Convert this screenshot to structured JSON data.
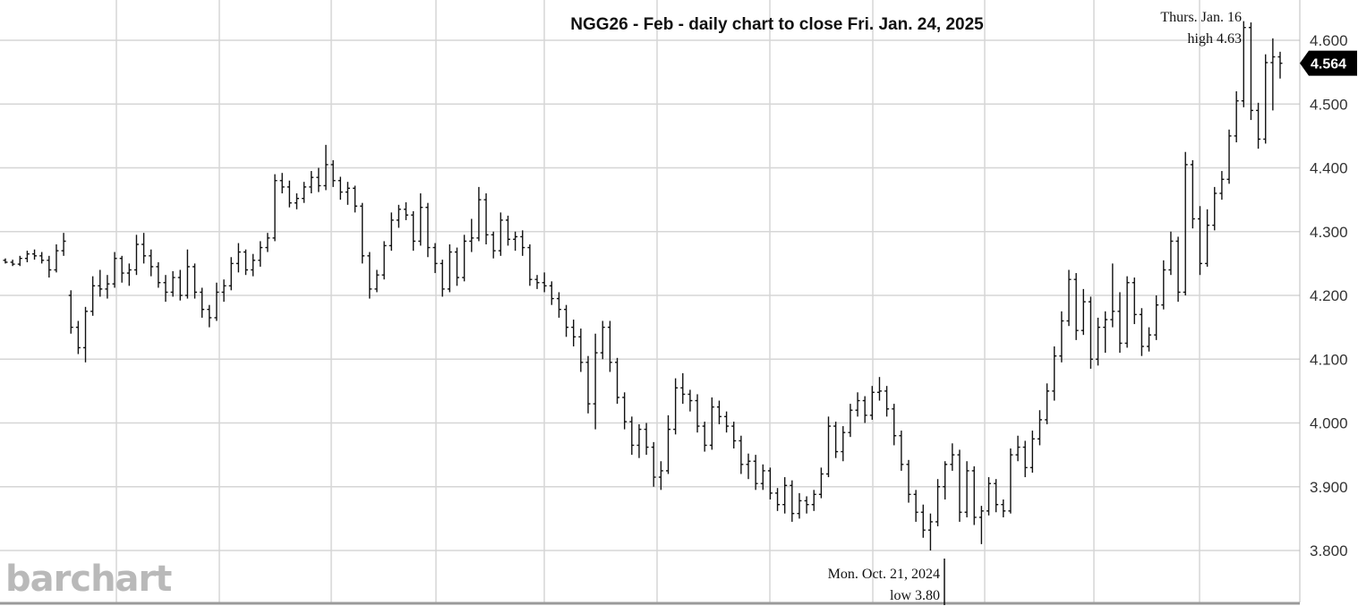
{
  "chart_data": {
    "type": "ohlc",
    "title": "NGG26 - Feb - daily chart to close Fri. Jan. 24, 2025",
    "xlabel": "",
    "ylabel": "",
    "ylim": [
      3.77,
      4.64
    ],
    "y_ticks": [
      "3.800",
      "3.900",
      "4.000",
      "4.100",
      "4.200",
      "4.300",
      "4.400",
      "4.500",
      "4.600"
    ],
    "y_tick_values": [
      3.8,
      3.9,
      4.0,
      4.1,
      4.2,
      4.3,
      4.4,
      4.5,
      4.6
    ],
    "grid": true,
    "last_price": 4.564,
    "last_price_label": "4.564",
    "annotations": {
      "high": {
        "line1": "Thurs. Jan. 16",
        "line2": "high 4.63",
        "value": 4.63
      },
      "low": {
        "line1": "Mon. Oct. 21, 2024",
        "line2": "low 3.80",
        "value": 3.8
      }
    },
    "series": [
      {
        "bars": [
          [
            4.255,
            4.258,
            4.25,
            4.252
          ],
          [
            4.252,
            4.256,
            4.246,
            4.249
          ],
          [
            4.249,
            4.262,
            4.246,
            4.258
          ],
          [
            4.258,
            4.27,
            4.252,
            4.265
          ],
          [
            4.265,
            4.272,
            4.256,
            4.262
          ],
          [
            4.262,
            4.268,
            4.25,
            4.255
          ],
          [
            4.255,
            4.262,
            4.228,
            4.24
          ],
          [
            4.24,
            4.28,
            4.236,
            4.27
          ],
          [
            4.27,
            4.298,
            4.262,
            4.285
          ],
          [
            4.2,
            4.208,
            4.14,
            4.15
          ],
          [
            4.15,
            4.16,
            4.108,
            4.118
          ],
          [
            4.118,
            4.182,
            4.095,
            4.175
          ],
          [
            4.175,
            4.23,
            4.168,
            4.215
          ],
          [
            4.215,
            4.24,
            4.198,
            4.21
          ],
          [
            4.21,
            4.232,
            4.195,
            4.218
          ],
          [
            4.218,
            4.268,
            4.212,
            4.258
          ],
          [
            4.258,
            4.262,
            4.22,
            4.235
          ],
          [
            4.235,
            4.25,
            4.215,
            4.24
          ],
          [
            4.24,
            4.295,
            4.232,
            4.28
          ],
          [
            4.28,
            4.298,
            4.25,
            4.262
          ],
          [
            4.262,
            4.272,
            4.23,
            4.245
          ],
          [
            4.245,
            4.252,
            4.212,
            4.22
          ],
          [
            4.22,
            4.232,
            4.19,
            4.205
          ],
          [
            4.205,
            4.238,
            4.198,
            4.228
          ],
          [
            4.228,
            4.24,
            4.192,
            4.2
          ],
          [
            4.2,
            4.272,
            4.195,
            4.245
          ],
          [
            4.245,
            4.25,
            4.195,
            4.205
          ],
          [
            4.205,
            4.212,
            4.165,
            4.178
          ],
          [
            4.178,
            4.185,
            4.15,
            4.165
          ],
          [
            4.165,
            4.22,
            4.16,
            4.205
          ],
          [
            4.205,
            4.225,
            4.19,
            4.215
          ],
          [
            4.215,
            4.26,
            4.208,
            4.25
          ],
          [
            4.25,
            4.282,
            4.236,
            4.268
          ],
          [
            4.268,
            4.272,
            4.232,
            4.24
          ],
          [
            4.24,
            4.265,
            4.23,
            4.255
          ],
          [
            4.255,
            4.285,
            4.245,
            4.275
          ],
          [
            4.275,
            4.298,
            4.268,
            4.29
          ],
          [
            4.29,
            4.39,
            4.285,
            4.38
          ],
          [
            4.38,
            4.392,
            4.36,
            4.37
          ],
          [
            4.37,
            4.38,
            4.338,
            4.345
          ],
          [
            4.345,
            4.36,
            4.335,
            4.352
          ],
          [
            4.352,
            4.378,
            4.345,
            4.37
          ],
          [
            4.37,
            4.395,
            4.36,
            4.385
          ],
          [
            4.385,
            4.4,
            4.362,
            4.372
          ],
          [
            4.372,
            4.436,
            4.365,
            4.405
          ],
          [
            4.405,
            4.412,
            4.37,
            4.38
          ],
          [
            4.38,
            4.386,
            4.35,
            4.362
          ],
          [
            4.362,
            4.378,
            4.342,
            4.368
          ],
          [
            4.368,
            4.372,
            4.33,
            4.34
          ],
          [
            4.34,
            4.345,
            4.25,
            4.262
          ],
          [
            4.262,
            4.268,
            4.195,
            4.21
          ],
          [
            4.21,
            4.24,
            4.205,
            4.232
          ],
          [
            4.232,
            4.285,
            4.225,
            4.278
          ],
          [
            4.278,
            4.33,
            4.27,
            4.318
          ],
          [
            4.318,
            4.342,
            4.306,
            4.335
          ],
          [
            4.335,
            4.346,
            4.318,
            4.326
          ],
          [
            4.326,
            4.332,
            4.27,
            4.285
          ],
          [
            4.285,
            4.36,
            4.278,
            4.338
          ],
          [
            4.338,
            4.345,
            4.26,
            4.275
          ],
          [
            4.275,
            4.282,
            4.235,
            4.25
          ],
          [
            4.25,
            4.256,
            4.198,
            4.21
          ],
          [
            4.21,
            4.28,
            4.205,
            4.268
          ],
          [
            4.268,
            4.275,
            4.215,
            4.228
          ],
          [
            4.228,
            4.295,
            4.222,
            4.285
          ],
          [
            4.285,
            4.32,
            4.268,
            4.29
          ],
          [
            4.29,
            4.37,
            4.285,
            4.35
          ],
          [
            4.35,
            4.36,
            4.28,
            4.295
          ],
          [
            4.295,
            4.3,
            4.258,
            4.27
          ],
          [
            4.27,
            4.33,
            4.262,
            4.318
          ],
          [
            4.318,
            4.325,
            4.278,
            4.288
          ],
          [
            4.288,
            4.3,
            4.27,
            4.292
          ],
          [
            4.292,
            4.302,
            4.262,
            4.275
          ],
          [
            4.275,
            4.28,
            4.215,
            4.225
          ],
          [
            4.225,
            4.232,
            4.21,
            4.22
          ],
          [
            4.22,
            4.236,
            4.205,
            4.215
          ],
          [
            4.215,
            4.222,
            4.185,
            4.195
          ],
          [
            4.195,
            4.205,
            4.165,
            4.178
          ],
          [
            4.178,
            4.185,
            4.135,
            4.15
          ],
          [
            4.15,
            4.162,
            4.12,
            4.135
          ],
          [
            4.135,
            4.148,
            4.08,
            4.095
          ],
          [
            4.095,
            4.105,
            4.015,
            4.03
          ],
          [
            4.03,
            4.14,
            3.99,
            4.11
          ],
          [
            4.11,
            4.16,
            4.1,
            4.15
          ],
          [
            4.15,
            4.16,
            4.08,
            4.095
          ],
          [
            4.095,
            4.102,
            4.03,
            4.04
          ],
          [
            4.04,
            4.048,
            3.99,
            4.002
          ],
          [
            4.002,
            4.01,
            3.95,
            3.965
          ],
          [
            3.965,
            3.998,
            3.945,
            3.99
          ],
          [
            3.99,
            4.0,
            3.95,
            3.962
          ],
          [
            3.962,
            3.97,
            3.9,
            3.915
          ],
          [
            3.915,
            3.94,
            3.895,
            3.925
          ],
          [
            3.925,
            4.012,
            3.92,
            3.99
          ],
          [
            3.99,
            4.07,
            3.982,
            4.055
          ],
          [
            4.055,
            4.078,
            4.03,
            4.045
          ],
          [
            4.045,
            4.052,
            4.018,
            4.035
          ],
          [
            4.035,
            4.045,
            3.985,
            3.995
          ],
          [
            3.995,
            4.002,
            3.955,
            3.965
          ],
          [
            3.965,
            4.04,
            3.958,
            4.025
          ],
          [
            4.025,
            4.035,
            3.998,
            4.01
          ],
          [
            4.01,
            4.018,
            3.985,
            3.995
          ],
          [
            3.995,
            4.002,
            3.96,
            3.972
          ],
          [
            3.972,
            3.98,
            3.92,
            3.935
          ],
          [
            3.935,
            3.952,
            3.912,
            3.94
          ],
          [
            3.94,
            3.95,
            3.895,
            3.905
          ],
          [
            3.905,
            3.935,
            3.895,
            3.925
          ],
          [
            3.925,
            3.93,
            3.88,
            3.89
          ],
          [
            3.89,
            3.898,
            3.862,
            3.872
          ],
          [
            3.872,
            3.915,
            3.858,
            3.902
          ],
          [
            3.902,
            3.91,
            3.845,
            3.858
          ],
          [
            3.858,
            3.89,
            3.85,
            3.878
          ],
          [
            3.878,
            3.885,
            3.858,
            3.872
          ],
          [
            3.872,
            3.895,
            3.862,
            3.888
          ],
          [
            3.888,
            3.93,
            3.882,
            3.92
          ],
          [
            3.92,
            4.01,
            3.915,
            3.995
          ],
          [
            3.995,
            4.002,
            3.945,
            3.955
          ],
          [
            3.955,
            3.995,
            3.94,
            3.985
          ],
          [
            3.985,
            4.03,
            3.978,
            4.02
          ],
          [
            4.02,
            4.048,
            4.01,
            4.035
          ],
          [
            4.035,
            4.042,
            4.0,
            4.012
          ],
          [
            4.012,
            4.058,
            4.005,
            4.048
          ],
          [
            4.048,
            4.072,
            4.035,
            4.05
          ],
          [
            4.05,
            4.058,
            4.01,
            4.022
          ],
          [
            4.022,
            4.03,
            3.965,
            3.98
          ],
          [
            3.98,
            3.988,
            3.925,
            3.935
          ],
          [
            3.935,
            3.942,
            3.875,
            3.888
          ],
          [
            3.888,
            3.895,
            3.845,
            3.86
          ],
          [
            3.86,
            3.872,
            3.82,
            3.832
          ],
          [
            3.832,
            3.858,
            3.8,
            3.845
          ],
          [
            3.845,
            3.912,
            3.838,
            3.9
          ],
          [
            3.9,
            3.94,
            3.88,
            3.935
          ],
          [
            3.935,
            3.968,
            3.925,
            3.95
          ],
          [
            3.95,
            3.958,
            3.845,
            3.86
          ],
          [
            3.86,
            3.94,
            3.852,
            3.925
          ],
          [
            3.925,
            3.932,
            3.84,
            3.852
          ],
          [
            3.852,
            3.87,
            3.81,
            3.862
          ],
          [
            3.862,
            3.915,
            3.855,
            3.905
          ],
          [
            3.905,
            3.912,
            3.86,
            3.872
          ],
          [
            3.872,
            3.88,
            3.852,
            3.862
          ],
          [
            3.862,
            3.96,
            3.858,
            3.95
          ],
          [
            3.95,
            3.98,
            3.94,
            3.962
          ],
          [
            3.962,
            3.972,
            3.915,
            3.93
          ],
          [
            3.93,
            3.988,
            3.922,
            3.975
          ],
          [
            3.975,
            4.02,
            3.965,
            4.005
          ],
          [
            4.005,
            4.062,
            3.998,
            4.05
          ],
          [
            4.05,
            4.12,
            4.035,
            4.105
          ],
          [
            4.105,
            4.175,
            4.095,
            4.16
          ],
          [
            4.16,
            4.24,
            4.152,
            4.225
          ],
          [
            4.225,
            4.235,
            4.13,
            4.145
          ],
          [
            4.145,
            4.21,
            4.138,
            4.19
          ],
          [
            4.19,
            4.198,
            4.085,
            4.1
          ],
          [
            4.1,
            4.165,
            4.09,
            4.15
          ],
          [
            4.15,
            4.175,
            4.11,
            4.162
          ],
          [
            4.162,
            4.25,
            4.15,
            4.175
          ],
          [
            4.175,
            4.205,
            4.11,
            4.125
          ],
          [
            4.125,
            4.23,
            4.118,
            4.22
          ],
          [
            4.22,
            4.228,
            4.155,
            4.17
          ],
          [
            4.17,
            4.18,
            4.105,
            4.12
          ],
          [
            4.12,
            4.15,
            4.112,
            4.138
          ],
          [
            4.138,
            4.2,
            4.13,
            4.185
          ],
          [
            4.185,
            4.255,
            4.178,
            4.24
          ],
          [
            4.24,
            4.3,
            4.232,
            4.285
          ],
          [
            4.285,
            4.292,
            4.19,
            4.205
          ],
          [
            4.205,
            4.425,
            4.2,
            4.405
          ],
          [
            4.405,
            4.412,
            4.305,
            4.32
          ],
          [
            4.32,
            4.34,
            4.232,
            4.25
          ],
          [
            4.25,
            4.335,
            4.245,
            4.31
          ],
          [
            4.31,
            4.37,
            4.302,
            4.36
          ],
          [
            4.36,
            4.395,
            4.35,
            4.382
          ],
          [
            4.382,
            4.46,
            4.375,
            4.45
          ],
          [
            4.45,
            4.52,
            4.44,
            4.505
          ],
          [
            4.505,
            4.63,
            4.495,
            4.62
          ],
          [
            4.62,
            4.628,
            4.475,
            4.49
          ],
          [
            4.49,
            4.502,
            4.43,
            4.445
          ],
          [
            4.445,
            4.578,
            4.438,
            4.565
          ],
          [
            4.565,
            4.603,
            4.49,
            4.574
          ],
          [
            4.574,
            4.582,
            4.54,
            4.564
          ]
        ]
      }
    ]
  },
  "brand": {
    "logo_text": "barchart",
    "accent": "#111111",
    "grid_color": "#d6d6d6",
    "logo_color": "#b9b9b9"
  }
}
